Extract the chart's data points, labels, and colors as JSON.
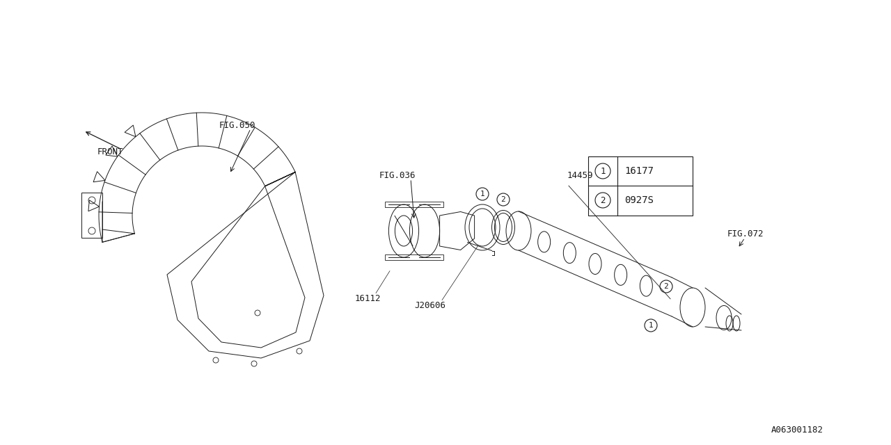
{
  "bg_color": "#ffffff",
  "line_color": "#1a1a1a",
  "fig_width": 12.8,
  "fig_height": 6.4,
  "dpi": 100,
  "labels": {
    "fig050": "FIG.050",
    "fig036": "FIG.036",
    "fig072": "FIG.072",
    "j20606": "J20606",
    "part16112": "16112",
    "part14459": "14459",
    "front": "FRONT",
    "part1_code": "16177",
    "part2_code": "0927S",
    "diagram_id": "A063001182"
  },
  "font": "monospace",
  "font_size": 9,
  "lw": 0.8
}
